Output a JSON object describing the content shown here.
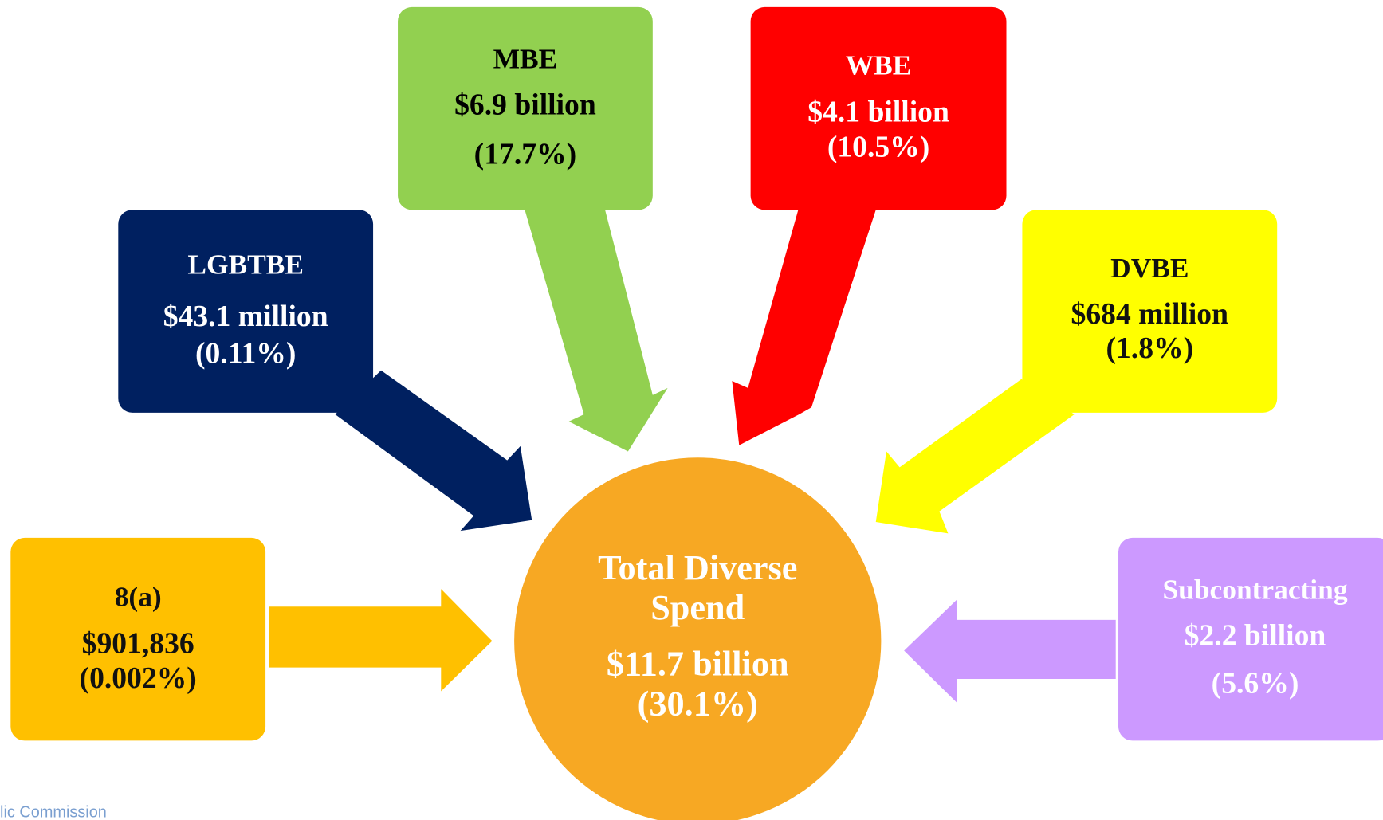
{
  "nodes": [
    {
      "label": "MBE",
      "amount": "$6.9 billion",
      "share": "(17.7%)"
    },
    {
      "label": "WBE",
      "amount": "$4.1  billion",
      "share": "(10.5%)"
    },
    {
      "label": "LGBTBE",
      "amount": "$43.1 million",
      "share": "(0.11%)"
    },
    {
      "label": "DVBE",
      "amount": "$684 million",
      "share": "(1.8%)"
    },
    {
      "label": "8(a)",
      "amount": "$901,836",
      "share": "(0.002%)"
    },
    {
      "label": "Subcontracting",
      "amount": "$2.2 billion",
      "share": "(5.6%)"
    }
  ],
  "center": {
    "title_line1": "Total Diverse",
    "title_line2": "Spend",
    "amount": "$11.7 billion",
    "share": "(30.1%)"
  },
  "footer": "lic Commission"
}
